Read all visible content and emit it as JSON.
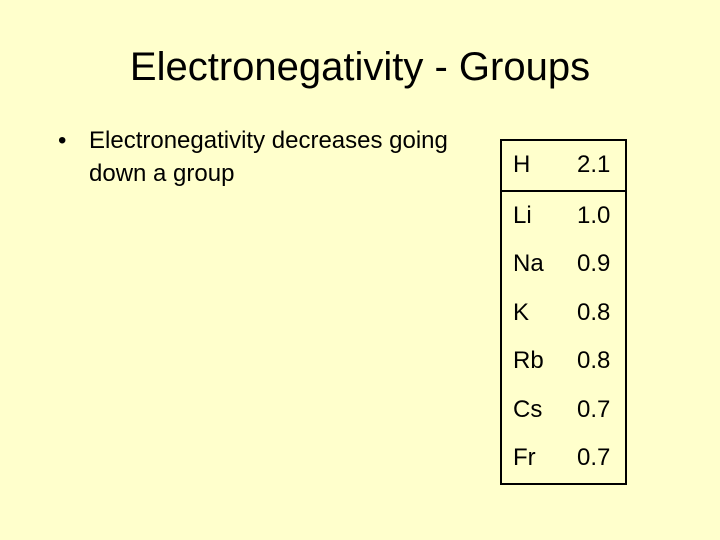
{
  "slide": {
    "title": "Electronegativity - Groups",
    "bullets": [
      "Electronegativity decreases going down a group"
    ],
    "bullet_glyph": "•"
  },
  "table": {
    "rows": [
      {
        "symbol": "H",
        "value": "2.1"
      },
      {
        "symbol": "Li",
        "value": "1.0"
      },
      {
        "symbol": "Na",
        "value": "0.9"
      },
      {
        "symbol": "K",
        "value": "0.8"
      },
      {
        "symbol": "Rb",
        "value": "0.8"
      },
      {
        "symbol": "Cs",
        "value": "0.7"
      },
      {
        "symbol": "Fr",
        "value": "0.7"
      }
    ]
  },
  "colors": {
    "background": "#ffffcc",
    "text": "#000000"
  }
}
